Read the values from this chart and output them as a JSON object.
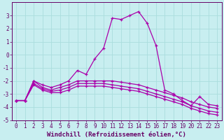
{
  "xlabel": "Windchill (Refroidissement éolien,°C)",
  "background_color": "#c8eef0",
  "grid_color": "#aadddd",
  "line_color": "#aa00aa",
  "x_values": [
    0,
    1,
    2,
    3,
    4,
    5,
    6,
    7,
    8,
    9,
    10,
    11,
    12,
    13,
    14,
    15,
    16,
    17,
    18,
    19,
    20,
    21,
    22,
    23
  ],
  "series": [
    [
      -3.5,
      -3.5,
      -2.0,
      -2.3,
      -2.5,
      -2.3,
      -2.0,
      -1.2,
      -1.5,
      -0.3,
      0.5,
      2.8,
      2.7,
      3.0,
      3.3,
      2.4,
      0.7,
      -2.7,
      -3.0,
      -3.5,
      -3.9,
      -3.2,
      -3.8,
      -3.9
    ],
    [
      -3.5,
      -3.5,
      -2.0,
      -2.5,
      -2.7,
      -2.5,
      -2.3,
      -2.0,
      -2.0,
      -2.0,
      -2.0,
      -2.0,
      -2.1,
      -2.2,
      -2.3,
      -2.5,
      -2.7,
      -2.9,
      -3.1,
      -3.3,
      -3.6,
      -3.8,
      -4.0,
      -4.1
    ],
    [
      -3.5,
      -3.5,
      -2.2,
      -2.6,
      -2.8,
      -2.7,
      -2.5,
      -2.2,
      -2.2,
      -2.2,
      -2.2,
      -2.3,
      -2.4,
      -2.5,
      -2.6,
      -2.8,
      -3.0,
      -3.2,
      -3.4,
      -3.6,
      -3.9,
      -4.1,
      -4.3,
      -4.4
    ],
    [
      -3.5,
      -3.5,
      -2.3,
      -2.7,
      -2.9,
      -2.9,
      -2.7,
      -2.4,
      -2.4,
      -2.4,
      -2.4,
      -2.5,
      -2.6,
      -2.7,
      -2.8,
      -3.0,
      -3.2,
      -3.4,
      -3.6,
      -3.8,
      -4.1,
      -4.3,
      -4.5,
      -4.6
    ]
  ],
  "ylim": [
    -5,
    4
  ],
  "xlim": [
    -0.5,
    23.5
  ],
  "yticks": [
    -5,
    -4,
    -3,
    -2,
    -1,
    0,
    1,
    2,
    3
  ],
  "xticks": [
    0,
    1,
    2,
    3,
    4,
    5,
    6,
    7,
    8,
    9,
    10,
    11,
    12,
    13,
    14,
    15,
    16,
    17,
    18,
    19,
    20,
    21,
    22,
    23
  ],
  "font_color": "#660066",
  "tick_fontsize": 5.5,
  "xlabel_fontsize": 6.5
}
